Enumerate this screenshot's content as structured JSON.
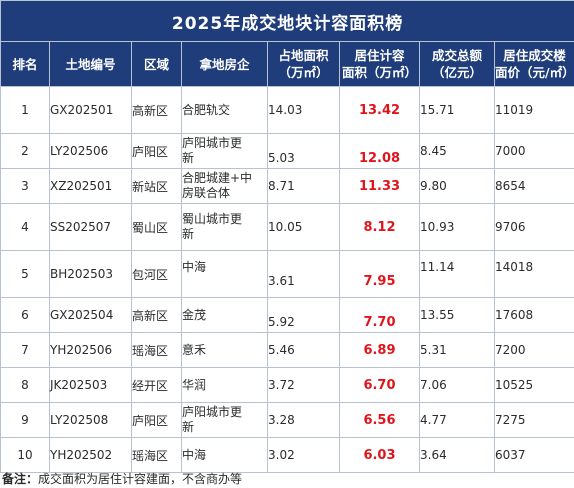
{
  "title": "2025年成交地块计容面积榜",
  "headers": {
    "rank": "排名",
    "code": "土地编号",
    "district": "区域",
    "developer": "拿地房企",
    "area": [
      "占地面积",
      "（万㎡）"
    ],
    "residential": [
      "居住计容",
      "面积（万㎡）"
    ],
    "amount": [
      "成交总额",
      "（亿元）"
    ],
    "price": [
      "居住成交楼",
      "面价（元/㎡）"
    ]
  },
  "rows": [
    {
      "rank": "1",
      "code": "GX202501",
      "district": "高新区",
      "developer": [
        "合肥轨交"
      ],
      "area": "14.03",
      "residential": "13.42",
      "amount": "15.71",
      "price": "11019"
    },
    {
      "rank": "2",
      "code": "LY202506",
      "district": "庐阳区",
      "developer": [
        "庐阳城市更",
        "新"
      ],
      "area": "5.03",
      "residential": "12.08",
      "amount": "8.45",
      "price": "7000"
    },
    {
      "rank": "3",
      "code": "XZ202501",
      "district": "新站区",
      "developer": [
        "合肥城建+中",
        "房联合体"
      ],
      "area": "8.71",
      "residential": "11.33",
      "amount": "9.80",
      "price": "8654"
    },
    {
      "rank": "4",
      "code": "SS202507",
      "district": "蜀山区",
      "developer": [
        "蜀山城市更",
        "新"
      ],
      "area": "10.05",
      "residential": "8.12",
      "amount": "10.93",
      "price": "9706"
    },
    {
      "rank": "5",
      "code": "BH202503",
      "district": "包河区",
      "developer": [
        "中海"
      ],
      "area": "3.61",
      "residential": "7.95",
      "amount": "11.14",
      "price": "14018"
    },
    {
      "rank": "6",
      "code": "GX202504",
      "district": "高新区",
      "developer": [
        "金茂"
      ],
      "area": "5.92",
      "residential": "7.70",
      "amount": "13.55",
      "price": "17608"
    },
    {
      "rank": "7",
      "code": "YH202506",
      "district": "瑶海区",
      "developer": [
        "意禾"
      ],
      "area": "5.46",
      "residential": "6.89",
      "amount": "5.31",
      "price": "7200"
    },
    {
      "rank": "8",
      "code": "JK202503",
      "district": "经开区",
      "developer": [
        "华润"
      ],
      "area": "3.72",
      "residential": "6.70",
      "amount": "7.06",
      "price": "10525"
    },
    {
      "rank": "9",
      "code": "LY202508",
      "district": "庐阳区",
      "developer": [
        "庐阳城市更",
        "新"
      ],
      "area": "3.28",
      "residential": "6.56",
      "amount": "4.77",
      "price": "7275"
    },
    {
      "rank": "10",
      "code": "YH202502",
      "district": "瑶海区",
      "developer": [
        "中海"
      ],
      "area": "3.02",
      "residential": "6.03",
      "amount": "3.64",
      "price": "6037"
    }
  ],
  "note": {
    "label": "备注：",
    "text": "成交面积为居住计容建面，不含商办等"
  }
}
